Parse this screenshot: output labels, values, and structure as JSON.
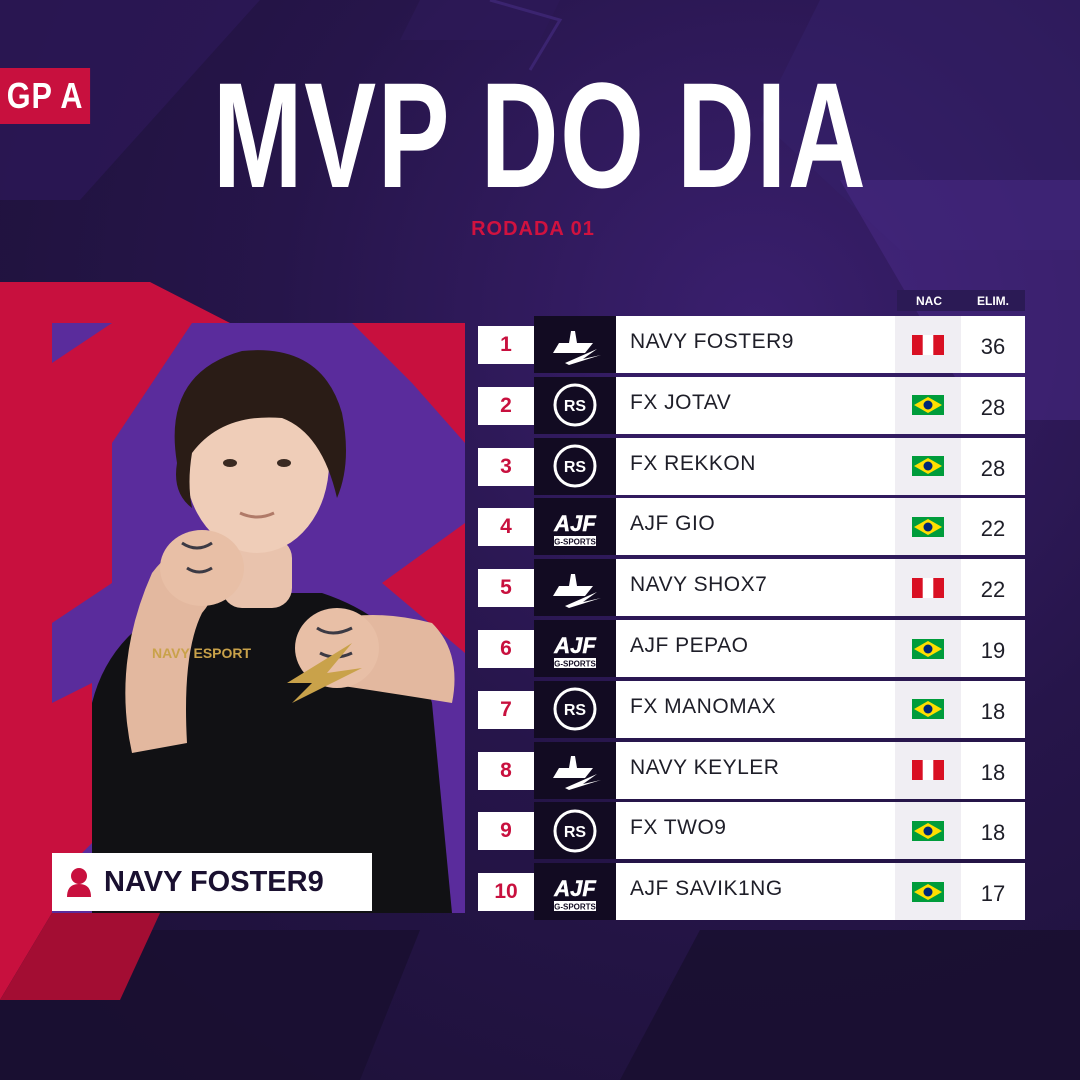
{
  "group_badge": "GP A",
  "title": "MVP DO DIA",
  "round": "RODADA 01",
  "mvp": {
    "name": "NAVY FOSTER9",
    "shirt_text": "NAVY ESPORT"
  },
  "table": {
    "headers": {
      "nac": "NAC",
      "elim": "ELIM."
    },
    "rows": [
      {
        "rank": "1",
        "team": "navy",
        "player": "NAVY FOSTER9",
        "nation": "peru",
        "elim": "36"
      },
      {
        "rank": "2",
        "team": "fx",
        "player": "FX JOTAV",
        "nation": "brazil",
        "elim": "28"
      },
      {
        "rank": "3",
        "team": "fx",
        "player": "FX REKKON",
        "nation": "brazil",
        "elim": "28"
      },
      {
        "rank": "4",
        "team": "ajf",
        "player": "AJF GIO",
        "nation": "brazil",
        "elim": "22"
      },
      {
        "rank": "5",
        "team": "navy",
        "player": "NAVY SHOX7",
        "nation": "peru",
        "elim": "22"
      },
      {
        "rank": "6",
        "team": "ajf",
        "player": "AJF PEPAO",
        "nation": "brazil",
        "elim": "19"
      },
      {
        "rank": "7",
        "team": "fx",
        "player": "FX MANOMAX",
        "nation": "brazil",
        "elim": "18"
      },
      {
        "rank": "8",
        "team": "navy",
        "player": "NAVY KEYLER",
        "nation": "peru",
        "elim": "18"
      },
      {
        "rank": "9",
        "team": "fx",
        "player": "FX TWO9",
        "nation": "brazil",
        "elim": "18"
      },
      {
        "rank": "10",
        "team": "ajf",
        "player": "AJF SAVIK1NG",
        "nation": "brazil",
        "elim": "17"
      }
    ]
  },
  "logos": {
    "fx_text": "RS",
    "ajf_text": "AJF",
    "ajf_sub": "G-SPORTS"
  },
  "colors": {
    "accent_red": "#c8103e",
    "bg_purple": "#26154a",
    "card_purple": "#5a2c9c",
    "peru_red": "#d91023",
    "brazil_green": "#009c3b",
    "brazil_yellow": "#ffdf00",
    "brazil_blue": "#002776"
  }
}
